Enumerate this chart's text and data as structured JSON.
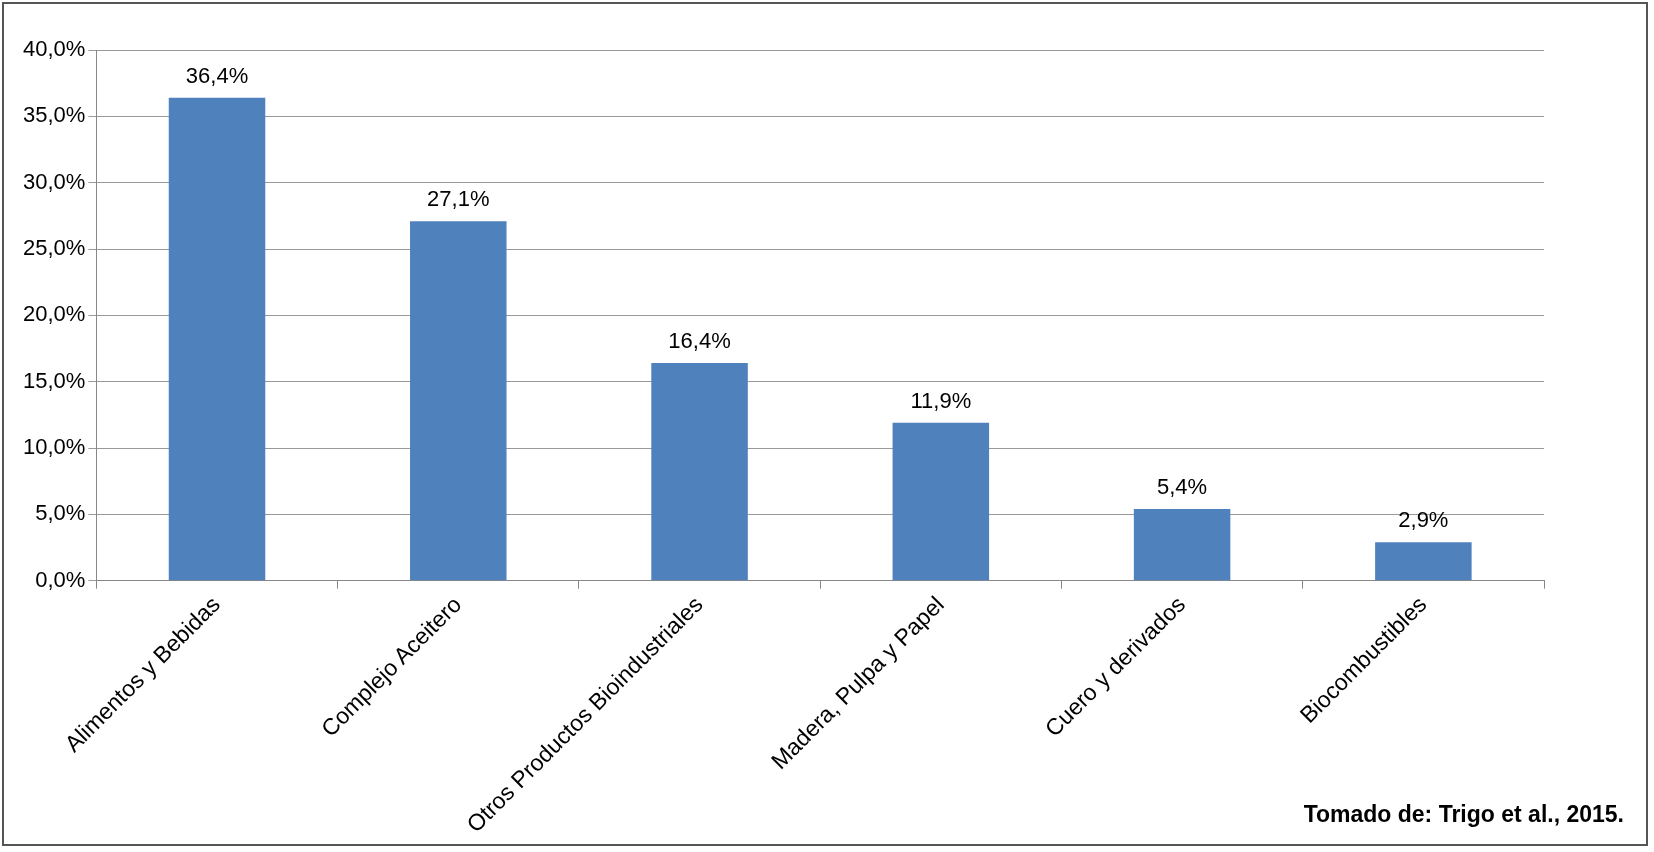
{
  "chart_data": {
    "type": "bar",
    "categories": [
      "Alimentos y Bebidas",
      "Complejo Aceitero",
      "Otros Productos Bioindustriales",
      "Madera, Pulpa y Papel",
      "Cuero y derivados",
      "Biocombustibles"
    ],
    "values": [
      36.4,
      27.1,
      16.4,
      11.9,
      5.4,
      2.9
    ],
    "value_labels": [
      "36,4%",
      "27,1%",
      "16,4%",
      "11,9%",
      "5,4%",
      "2,9%"
    ],
    "color": "#4f81bd",
    "ylim": [
      0,
      40
    ],
    "yticks": [
      {
        "value": 0,
        "label": "0,0%"
      },
      {
        "value": 5,
        "label": "5,0%"
      },
      {
        "value": 10,
        "label": "10,0%"
      },
      {
        "value": 15,
        "label": "15,0%"
      },
      {
        "value": 20,
        "label": "20,0%"
      },
      {
        "value": 25,
        "label": "25,0%"
      },
      {
        "value": 30,
        "label": "30,0%"
      },
      {
        "value": 35,
        "label": "35,0%"
      },
      {
        "value": 40,
        "label": "40,0%"
      }
    ],
    "grid": "y",
    "annotations": [
      "Tomado de: Trigo et al., 2015."
    ]
  }
}
